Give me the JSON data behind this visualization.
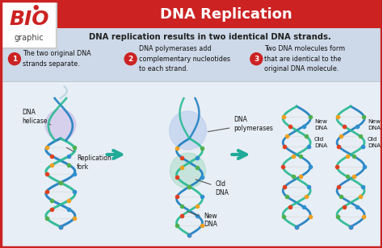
{
  "title": "DNA Replication",
  "subtitle": "DNA replication results in two identical DNA strands.",
  "header_bg": "#cc2222",
  "sub_header_bg": "#cdd9e8",
  "main_bg": "#e8eef5",
  "border_color": "#cc2222",
  "step1_num": "1",
  "step1_text": "The two original DNA\nstrands separate.",
  "step2_num": "2",
  "step2_text": "DNA polymerases add\ncomplementary nucleotides\nto each strand.",
  "step3_num": "3",
  "step3_text": "Two DNA molecules form\nthat are identical to the\noriginal DNA molecule.",
  "label1a": "DNA\nhelicase",
  "label1b": "Replication\nfork",
  "label2a": "DNA\npolymerases",
  "label2b": "Old\nDNA",
  "label2c": "New\nDNA",
  "label3a": "New\nDNA",
  "label3b": "Old\nDNA",
  "bio_box_color": "#ffffff",
  "bio_text_color": "#cc2222",
  "arrow_color": "#22aa99",
  "step_circle_color": "#cc2222",
  "step_text_color": "#ffffff",
  "title_color": "#ffffff",
  "subtitle_color": "#222222",
  "dot_colors": [
    "#e04020",
    "#f0a020",
    "#3090d0",
    "#50b050"
  ],
  "strand_color1": "#1a7cbf",
  "strand_color2": "#25b890",
  "rung_color": "#dddddd"
}
